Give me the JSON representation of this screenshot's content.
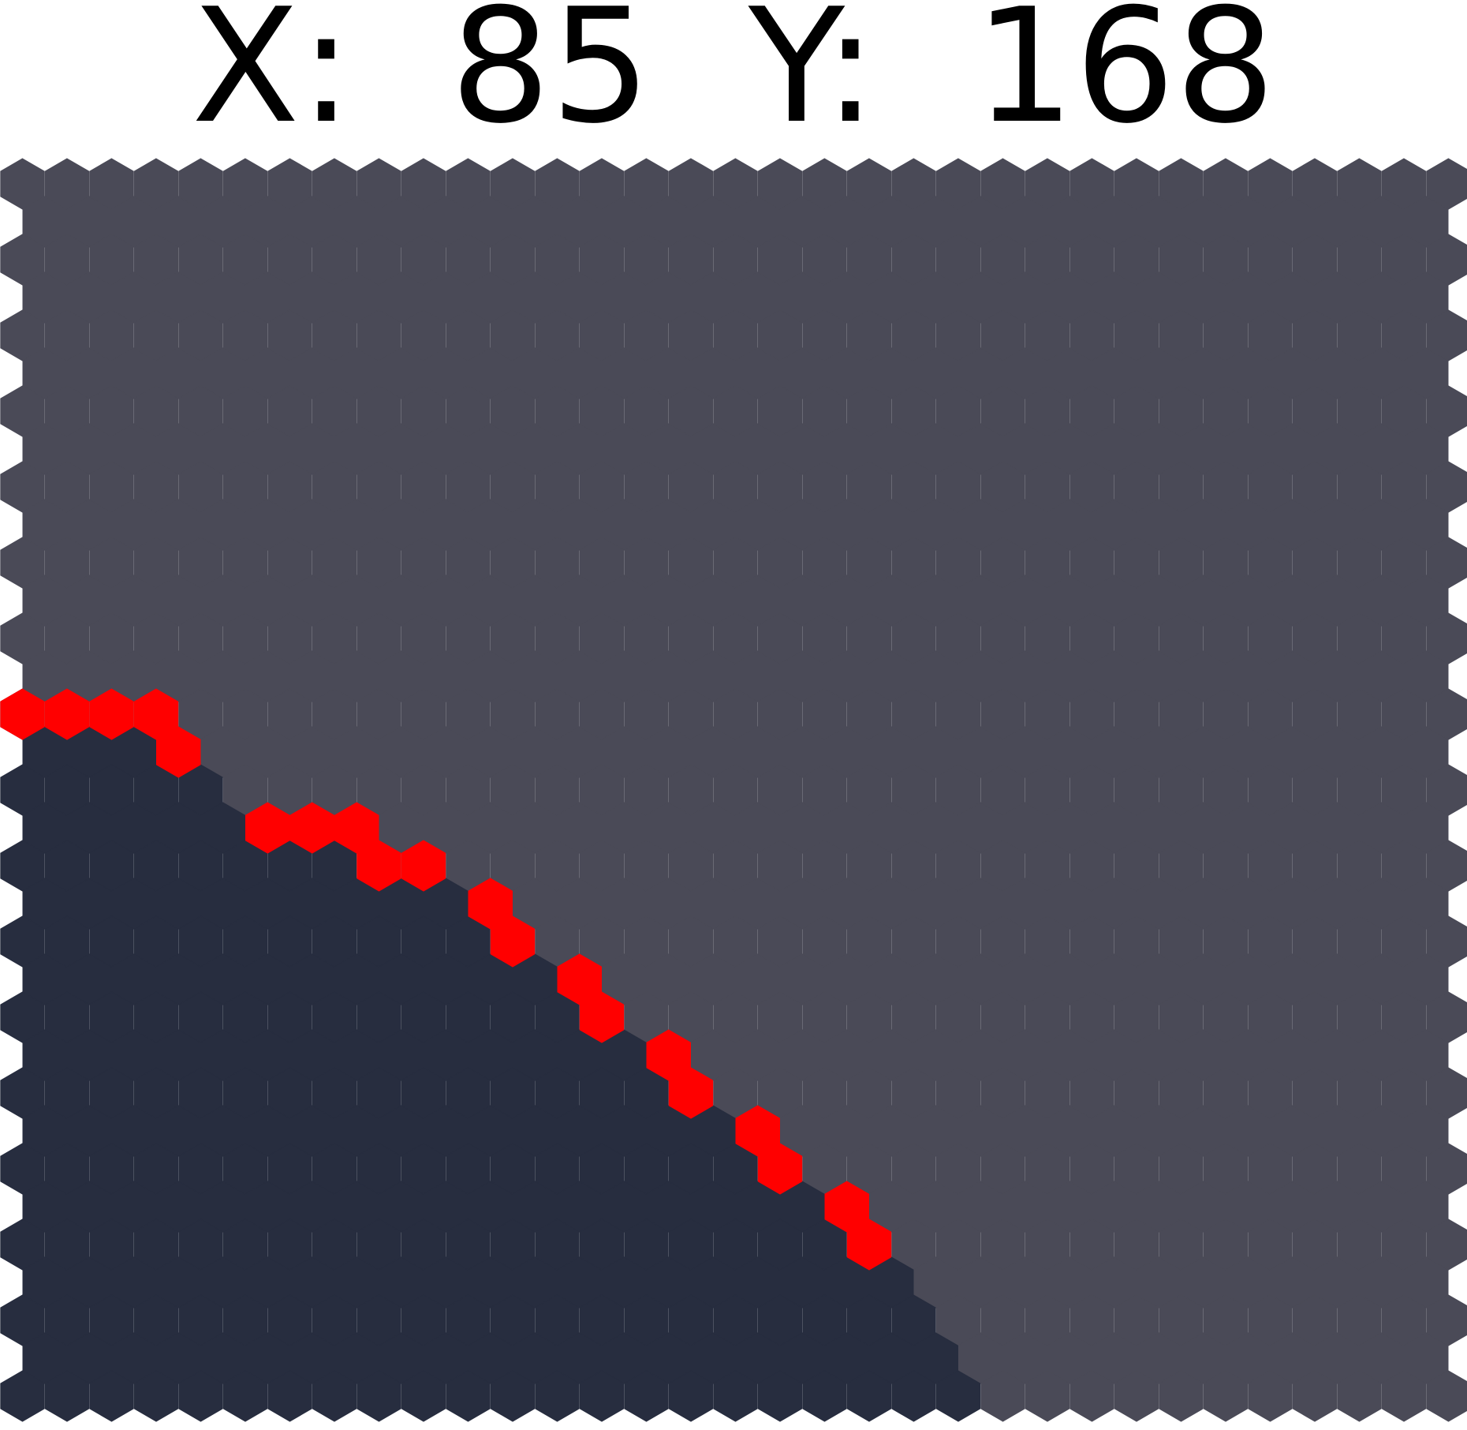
{
  "readout": {
    "x_label": "X:",
    "x_value": "85",
    "y_label": "Y:",
    "y_value": "168"
  },
  "map": {
    "colors": {
      "background": "#ffffff",
      "upper_region": "#4a4a57",
      "lower_region": "#272d3f",
      "border_path": "#ff0000"
    }
  }
}
